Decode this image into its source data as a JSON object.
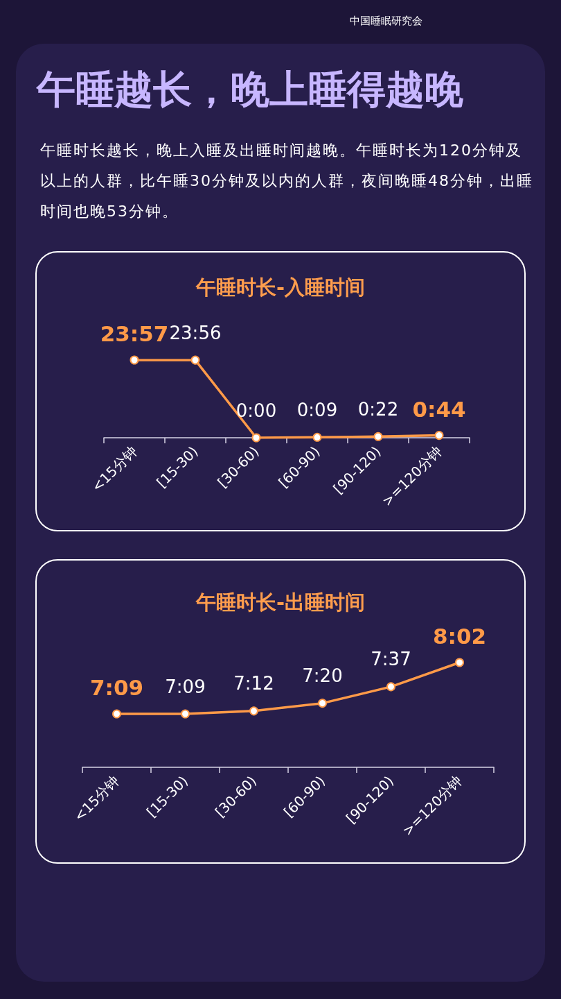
{
  "chart_data": [
    {
      "type": "other",
      "title": "午睡越长，晚上睡得越晚",
      "subtitle": "午睡时长越长，晚上入睡及出睡时间越晚。午睡时长为120分钟及以上的人群，比午睡30分钟及以内的人群，夜间晚睡48分钟，出睡时间也晚53分钟。",
      "annotations": [
        "中国睡眠研究会"
      ]
    },
    {
      "type": "line",
      "title": "午睡时长-入睡时间",
      "categories": [
        "<15分钟",
        "[15-30)",
        "[30-60)",
        "[60-90)",
        "[90-120)",
        ">=120分钟"
      ],
      "values": [
        23.95,
        23.9333,
        0,
        0.15,
        0.3667,
        0.7333
      ],
      "value_labels": [
        "23:57",
        "23:56",
        "0:00",
        "0:09",
        "0:22",
        "0:44"
      ],
      "color": "#ff9a48",
      "marker": "circle",
      "tick_labels": "x"
    },
    {
      "type": "line",
      "title": "午睡时长-出睡时间",
      "categories": [
        "<15分钟",
        "[15-30)",
        "[30-60)",
        "[60-90)",
        "[90-120)",
        ">=120分钟"
      ],
      "values": [
        7.15,
        7.15,
        7.2,
        7.3333,
        7.6167,
        8.0333
      ],
      "value_labels": [
        "7:09",
        "7:09",
        "7:12",
        "7:20",
        "7:37",
        "8:02"
      ],
      "color": "#ff9a48",
      "marker": "circle",
      "tick_labels": "x"
    }
  ]
}
